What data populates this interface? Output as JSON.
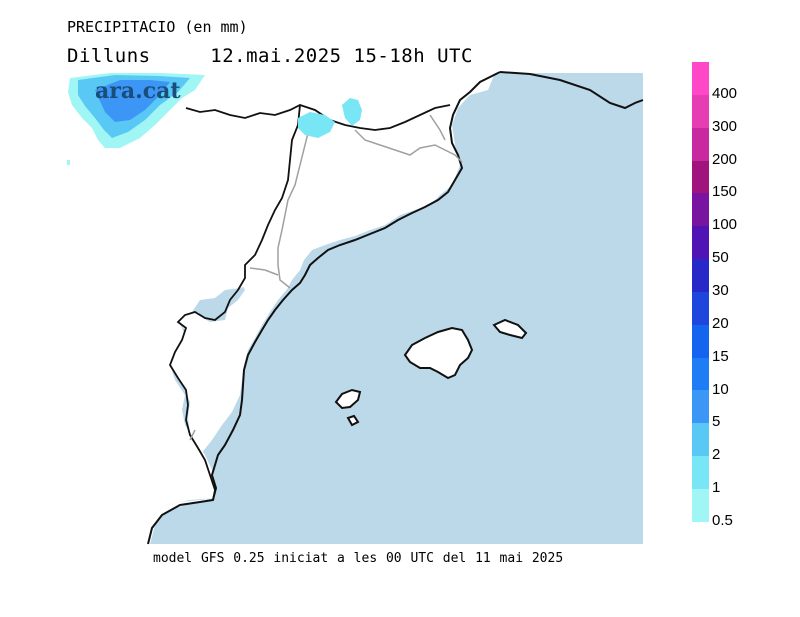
{
  "header": {
    "title": "PRECIPITACIO (en mm)",
    "day": "Dilluns",
    "date_time": "12.mai.2025 15-18h UTC"
  },
  "logo": {
    "text": "ara.cat"
  },
  "footer": {
    "text": "model GFS 0.25 iniciat a les 00 UTC del 11 mai 2025"
  },
  "legend": {
    "levels": [
      {
        "label": "400",
        "color": "#ff48c8"
      },
      {
        "label": "300",
        "color": "#e63cb4"
      },
      {
        "label": "200",
        "color": "#c828a0"
      },
      {
        "label": "150",
        "color": "#a0147e"
      },
      {
        "label": "100",
        "color": "#7814a0"
      },
      {
        "label": "50",
        "color": "#5014b4"
      },
      {
        "label": "30",
        "color": "#2828c8"
      },
      {
        "label": "20",
        "color": "#1e46dc"
      },
      {
        "label": "15",
        "color": "#1464f0"
      },
      {
        "label": "10",
        "color": "#1e7cf5"
      },
      {
        "label": "5",
        "color": "#3c96f5"
      },
      {
        "label": "2",
        "color": "#5ac8f5"
      },
      {
        "label": "1",
        "color": "#78e6f5"
      },
      {
        "label": "0.5",
        "color": "#a0f5f5"
      }
    ]
  },
  "map": {
    "sea_color": "#bcd9ea",
    "land_color": "#ffffff",
    "coast_color": "#111111",
    "border_color": "#a0a0a0"
  }
}
